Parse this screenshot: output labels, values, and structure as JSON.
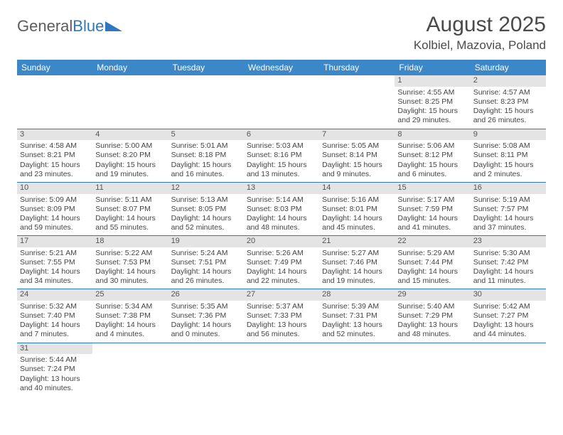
{
  "logo": {
    "part1": "General",
    "part2": "Blue"
  },
  "title": "August 2025",
  "location": "Kolbiel, Mazovia, Poland",
  "day_headers": [
    "Sunday",
    "Monday",
    "Tuesday",
    "Wednesday",
    "Thursday",
    "Friday",
    "Saturday"
  ],
  "colors": {
    "header_bg": "#3c87c7",
    "row_divider": "#2f78bd",
    "daynum_bg": "#e4e4e4",
    "text": "#444444"
  },
  "weeks": [
    [
      null,
      null,
      null,
      null,
      null,
      {
        "n": "1",
        "sunrise": "Sunrise: 4:55 AM",
        "sunset": "Sunset: 8:25 PM",
        "day": "Daylight: 15 hours and 29 minutes."
      },
      {
        "n": "2",
        "sunrise": "Sunrise: 4:57 AM",
        "sunset": "Sunset: 8:23 PM",
        "day": "Daylight: 15 hours and 26 minutes."
      }
    ],
    [
      {
        "n": "3",
        "sunrise": "Sunrise: 4:58 AM",
        "sunset": "Sunset: 8:21 PM",
        "day": "Daylight: 15 hours and 23 minutes."
      },
      {
        "n": "4",
        "sunrise": "Sunrise: 5:00 AM",
        "sunset": "Sunset: 8:20 PM",
        "day": "Daylight: 15 hours and 19 minutes."
      },
      {
        "n": "5",
        "sunrise": "Sunrise: 5:01 AM",
        "sunset": "Sunset: 8:18 PM",
        "day": "Daylight: 15 hours and 16 minutes."
      },
      {
        "n": "6",
        "sunrise": "Sunrise: 5:03 AM",
        "sunset": "Sunset: 8:16 PM",
        "day": "Daylight: 15 hours and 13 minutes."
      },
      {
        "n": "7",
        "sunrise": "Sunrise: 5:05 AM",
        "sunset": "Sunset: 8:14 PM",
        "day": "Daylight: 15 hours and 9 minutes."
      },
      {
        "n": "8",
        "sunrise": "Sunrise: 5:06 AM",
        "sunset": "Sunset: 8:12 PM",
        "day": "Daylight: 15 hours and 6 minutes."
      },
      {
        "n": "9",
        "sunrise": "Sunrise: 5:08 AM",
        "sunset": "Sunset: 8:11 PM",
        "day": "Daylight: 15 hours and 2 minutes."
      }
    ],
    [
      {
        "n": "10",
        "sunrise": "Sunrise: 5:09 AM",
        "sunset": "Sunset: 8:09 PM",
        "day": "Daylight: 14 hours and 59 minutes."
      },
      {
        "n": "11",
        "sunrise": "Sunrise: 5:11 AM",
        "sunset": "Sunset: 8:07 PM",
        "day": "Daylight: 14 hours and 55 minutes."
      },
      {
        "n": "12",
        "sunrise": "Sunrise: 5:13 AM",
        "sunset": "Sunset: 8:05 PM",
        "day": "Daylight: 14 hours and 52 minutes."
      },
      {
        "n": "13",
        "sunrise": "Sunrise: 5:14 AM",
        "sunset": "Sunset: 8:03 PM",
        "day": "Daylight: 14 hours and 48 minutes."
      },
      {
        "n": "14",
        "sunrise": "Sunrise: 5:16 AM",
        "sunset": "Sunset: 8:01 PM",
        "day": "Daylight: 14 hours and 45 minutes."
      },
      {
        "n": "15",
        "sunrise": "Sunrise: 5:17 AM",
        "sunset": "Sunset: 7:59 PM",
        "day": "Daylight: 14 hours and 41 minutes."
      },
      {
        "n": "16",
        "sunrise": "Sunrise: 5:19 AM",
        "sunset": "Sunset: 7:57 PM",
        "day": "Daylight: 14 hours and 37 minutes."
      }
    ],
    [
      {
        "n": "17",
        "sunrise": "Sunrise: 5:21 AM",
        "sunset": "Sunset: 7:55 PM",
        "day": "Daylight: 14 hours and 34 minutes."
      },
      {
        "n": "18",
        "sunrise": "Sunrise: 5:22 AM",
        "sunset": "Sunset: 7:53 PM",
        "day": "Daylight: 14 hours and 30 minutes."
      },
      {
        "n": "19",
        "sunrise": "Sunrise: 5:24 AM",
        "sunset": "Sunset: 7:51 PM",
        "day": "Daylight: 14 hours and 26 minutes."
      },
      {
        "n": "20",
        "sunrise": "Sunrise: 5:26 AM",
        "sunset": "Sunset: 7:49 PM",
        "day": "Daylight: 14 hours and 22 minutes."
      },
      {
        "n": "21",
        "sunrise": "Sunrise: 5:27 AM",
        "sunset": "Sunset: 7:46 PM",
        "day": "Daylight: 14 hours and 19 minutes."
      },
      {
        "n": "22",
        "sunrise": "Sunrise: 5:29 AM",
        "sunset": "Sunset: 7:44 PM",
        "day": "Daylight: 14 hours and 15 minutes."
      },
      {
        "n": "23",
        "sunrise": "Sunrise: 5:30 AM",
        "sunset": "Sunset: 7:42 PM",
        "day": "Daylight: 14 hours and 11 minutes."
      }
    ],
    [
      {
        "n": "24",
        "sunrise": "Sunrise: 5:32 AM",
        "sunset": "Sunset: 7:40 PM",
        "day": "Daylight: 14 hours and 7 minutes."
      },
      {
        "n": "25",
        "sunrise": "Sunrise: 5:34 AM",
        "sunset": "Sunset: 7:38 PM",
        "day": "Daylight: 14 hours and 4 minutes."
      },
      {
        "n": "26",
        "sunrise": "Sunrise: 5:35 AM",
        "sunset": "Sunset: 7:36 PM",
        "day": "Daylight: 14 hours and 0 minutes."
      },
      {
        "n": "27",
        "sunrise": "Sunrise: 5:37 AM",
        "sunset": "Sunset: 7:33 PM",
        "day": "Daylight: 13 hours and 56 minutes."
      },
      {
        "n": "28",
        "sunrise": "Sunrise: 5:39 AM",
        "sunset": "Sunset: 7:31 PM",
        "day": "Daylight: 13 hours and 52 minutes."
      },
      {
        "n": "29",
        "sunrise": "Sunrise: 5:40 AM",
        "sunset": "Sunset: 7:29 PM",
        "day": "Daylight: 13 hours and 48 minutes."
      },
      {
        "n": "30",
        "sunrise": "Sunrise: 5:42 AM",
        "sunset": "Sunset: 7:27 PM",
        "day": "Daylight: 13 hours and 44 minutes."
      }
    ],
    [
      {
        "n": "31",
        "sunrise": "Sunrise: 5:44 AM",
        "sunset": "Sunset: 7:24 PM",
        "day": "Daylight: 13 hours and 40 minutes."
      },
      null,
      null,
      null,
      null,
      null,
      null
    ]
  ]
}
